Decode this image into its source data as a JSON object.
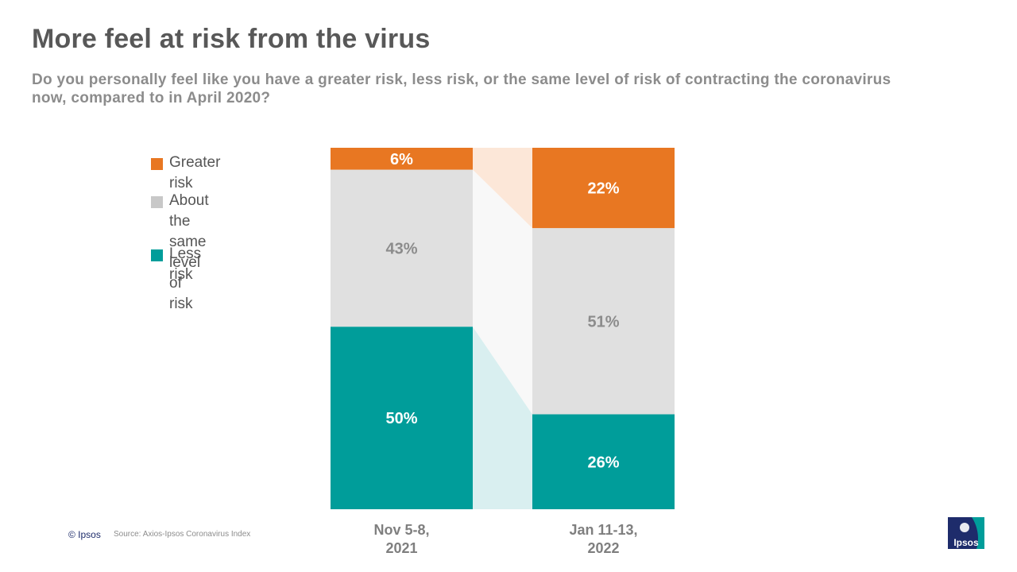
{
  "header": {
    "title": "More feel at risk from the virus",
    "subtitle": "Do you personally feel like you have a greater risk, less risk, or the same level of risk of contracting the coronavirus now, compared to in April 2020?"
  },
  "legend": [
    {
      "label": "Greater risk",
      "color": "#E87722"
    },
    {
      "label": "About the same\nlevel of risk",
      "color": "#C8C8C8"
    },
    {
      "label": "Less risk",
      "color": "#009D9A"
    }
  ],
  "chart_data": {
    "type": "bar",
    "stacked": true,
    "title": "More feel at risk from the virus",
    "categories": [
      "Nov 5-8,\n2021",
      "Jan 11-13,\n2022"
    ],
    "series": [
      {
        "name": "Less risk",
        "values": [
          50,
          26
        ],
        "color": "#009D9A",
        "connector_color": "#D9EFF0",
        "label_color": "#FFFFFF"
      },
      {
        "name": "About the same level of risk",
        "values": [
          43,
          51
        ],
        "color": "#E0E0E0",
        "connector_color": "#F8F8F8",
        "label_color": "#8C8C8C"
      },
      {
        "name": "Greater risk",
        "values": [
          6,
          22
        ],
        "color": "#E87722",
        "connector_color": "#FCE7D8",
        "label_color": "#FFFFFF"
      }
    ],
    "value_suffix": "%",
    "ylim": [
      0,
      100
    ]
  },
  "footer": {
    "copyright": "© Ipsos",
    "source": "Source: Axios-Ipsos Coronavirus Index",
    "logo_text": "Ipsos"
  }
}
